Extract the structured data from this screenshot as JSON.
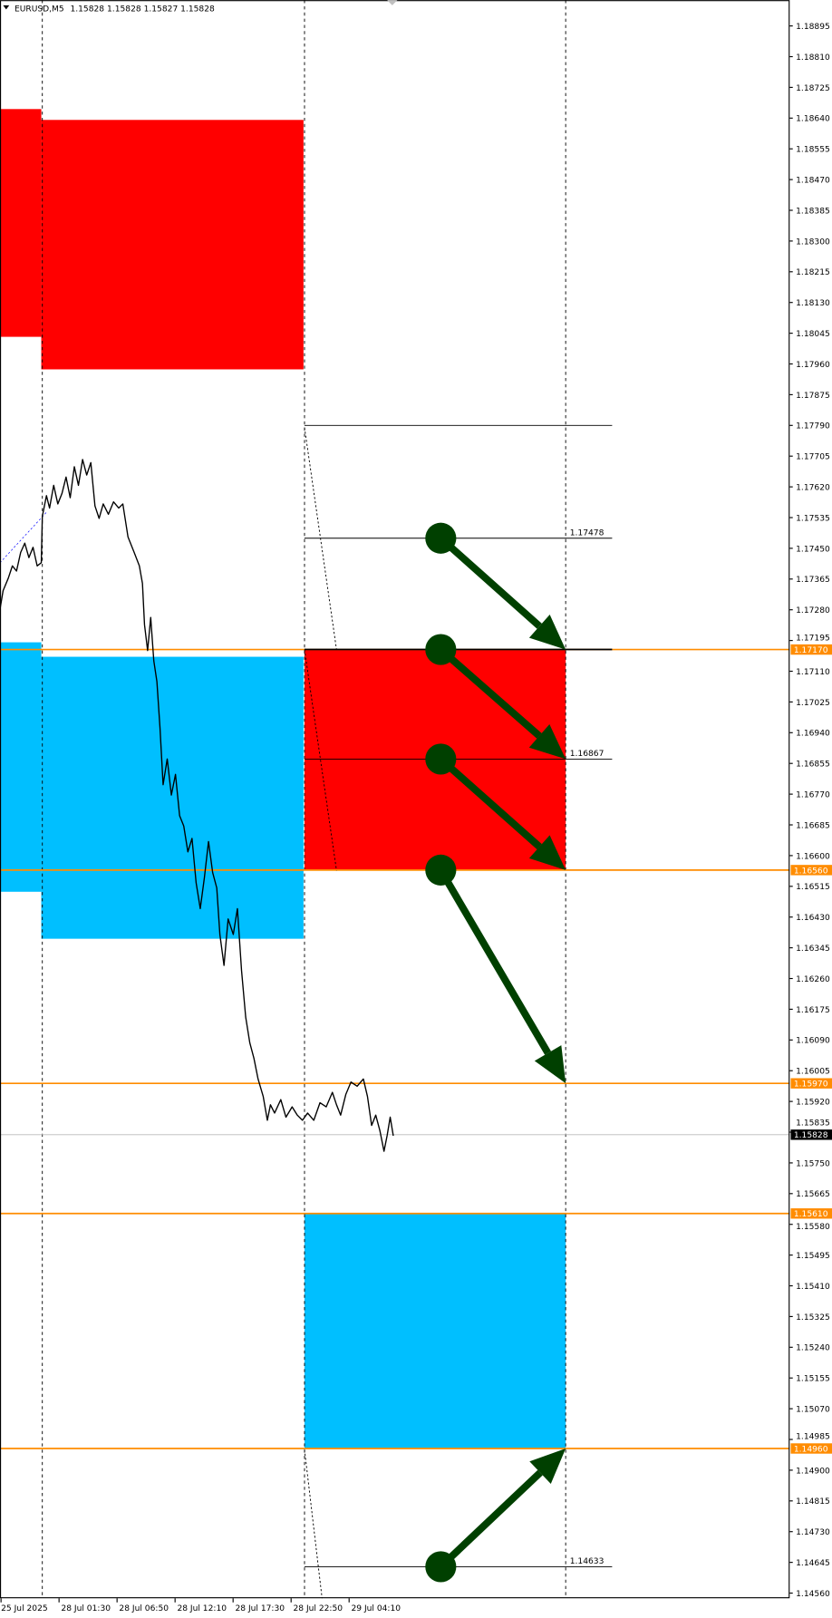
{
  "header": {
    "symbol": "EURUSD,M5",
    "ohlc": "1.15828 1.15828 1.15827 1.15828"
  },
  "colors": {
    "supply": "#ff0000",
    "demand": "#00bfff",
    "level": "#ff8c00",
    "arrow": "#004000",
    "price_line": "#000000"
  },
  "price_axis": {
    "ticks": [
      "1.18895",
      "1.18810",
      "1.18725",
      "1.18640",
      "1.18555",
      "1.18470",
      "1.18385",
      "1.18300",
      "1.18215",
      "1.18130",
      "1.18045",
      "1.17960",
      "1.17875",
      "1.17790",
      "1.17705",
      "1.17620",
      "1.17535",
      "1.17450",
      "1.17365",
      "1.17280",
      "1.17195",
      "1.17110",
      "1.17025",
      "1.16940",
      "1.16855",
      "1.16770",
      "1.16685",
      "1.16600",
      "1.16515",
      "1.16430",
      "1.16345",
      "1.16260",
      "1.16175",
      "1.16090",
      "1.16005",
      "1.15920",
      "1.15835",
      "1.15750",
      "1.15665",
      "1.15580",
      "1.15495",
      "1.15410",
      "1.15325",
      "1.15240",
      "1.15155",
      "1.15070",
      "1.14985",
      "1.14900",
      "1.14815",
      "1.14730",
      "1.14645",
      "1.14560"
    ],
    "levels": [
      "1.17170",
      "1.16560",
      "1.15970",
      "1.15610",
      "1.14960"
    ],
    "current": "1.15828"
  },
  "time_axis": [
    "25 Jul 2025",
    "28 Jul 01:30",
    "28 Jul 06:50",
    "28 Jul 12:10",
    "28 Jul 17:30",
    "28 Jul 22:50",
    "29 Jul 04:10"
  ],
  "zones": [
    {
      "type": "supply",
      "from": "1.18665",
      "to": "1.18035",
      "span": "before 28 Jul"
    },
    {
      "type": "supply",
      "from": "1.18635",
      "to": "1.17945",
      "span": "28 Jul"
    },
    {
      "type": "demand",
      "from": "1.17190",
      "to": "1.16500",
      "span": "before 28 Jul"
    },
    {
      "type": "demand",
      "from": "1.17150",
      "to": "1.16370",
      "span": "28 Jul"
    },
    {
      "type": "supply",
      "from": "1.17170",
      "to": "1.16560",
      "span": "29 Jul"
    },
    {
      "type": "demand",
      "from": "1.15610",
      "to": "1.14960",
      "span": "29 Jul"
    }
  ],
  "projection_levels": [
    {
      "price": "1.17790",
      "label": ""
    },
    {
      "price": "1.17478",
      "label": "1.17478"
    },
    {
      "price": "1.16867",
      "label": "1.16867"
    },
    {
      "price": "1.14633",
      "label": "1.14633"
    }
  ],
  "arrows": [
    {
      "from": "1.17478",
      "to": "1.17170"
    },
    {
      "from": "1.17170",
      "to": "1.16867"
    },
    {
      "from": "1.16867",
      "to": "1.16560"
    },
    {
      "from": "1.16560",
      "to": "1.15970"
    },
    {
      "from": "1.14633",
      "to": "1.14960"
    }
  ]
}
